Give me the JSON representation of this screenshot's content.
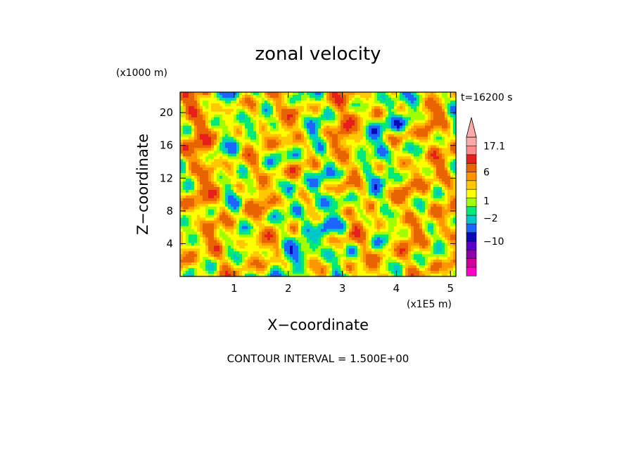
{
  "chart_data": {
    "type": "heatmap",
    "title": "zonal velocity",
    "xlabel": "X−coordinate",
    "ylabel": "Z−coordinate",
    "x_scale_label": "(x1E5 m)",
    "y_scale_label": "(x1000 m)",
    "time_label": "t=16200 s",
    "footer": "CONTOUR INTERVAL = 1.500E+00",
    "xlim": [
      0,
      5.1
    ],
    "ylim": [
      0,
      22.5
    ],
    "x_ticks": [
      "1",
      "2",
      "3",
      "4",
      "5"
    ],
    "y_ticks": [
      "4",
      "8",
      "12",
      "16",
      "20"
    ],
    "colorbar": {
      "levels_bottom_to_top": [
        -25,
        -20,
        -15,
        -10,
        -6,
        -3,
        -1.5,
        0,
        1.5,
        3,
        4.5,
        6,
        9,
        13.5,
        17.1
      ],
      "colors_bottom_to_top": [
        "#ff00c8",
        "#d2009a",
        "#8c00aa",
        "#5a00c8",
        "#0a0ab4",
        "#1e64ff",
        "#00c8c8",
        "#00e87a",
        "#a0ff00",
        "#ffff00",
        "#ffc800",
        "#ff9600",
        "#e86400",
        "#e61e1e",
        "#ff8c8c",
        "#ffaaaa"
      ],
      "labels": [
        {
          "text": "17.1",
          "value": 17.1
        },
        {
          "text": "6",
          "value": 6
        },
        {
          "text": "1",
          "value": 1
        },
        {
          "text": "−2",
          "value": -2
        },
        {
          "text": "−10",
          "value": -10
        }
      ]
    }
  }
}
